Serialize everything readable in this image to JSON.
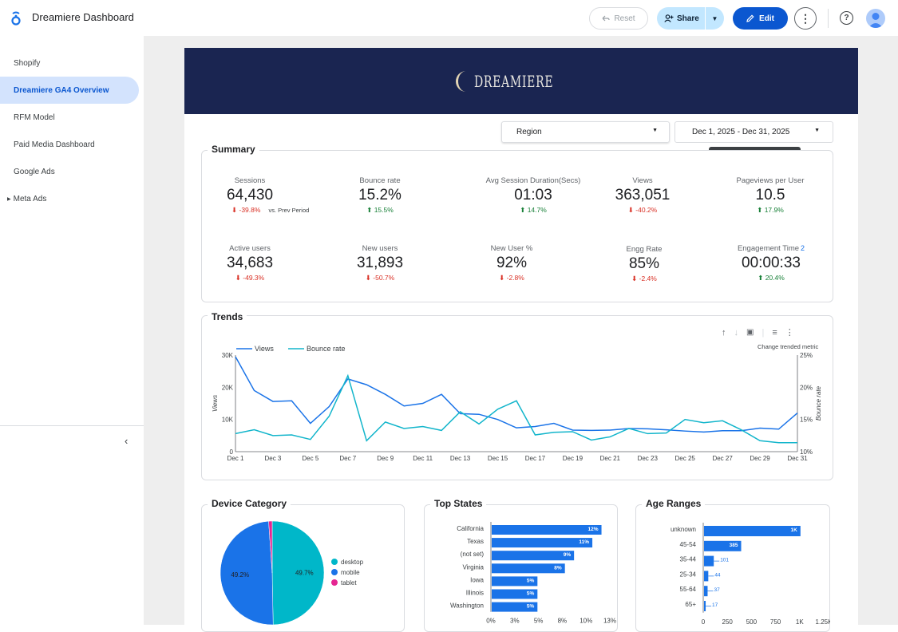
{
  "app": {
    "title": "Dreamiere Dashboard"
  },
  "toolbar": {
    "reset_label": "Reset",
    "share_label": "Share",
    "edit_label": "Edit"
  },
  "sidebar": {
    "items": [
      {
        "label": "Shopify",
        "active": false
      },
      {
        "label": "Dreamiere GA4 Overview",
        "active": true
      },
      {
        "label": "RFM Model",
        "active": false
      },
      {
        "label": "Paid Media Dashboard",
        "active": false
      },
      {
        "label": "Google Ads",
        "active": false
      },
      {
        "label": "Meta Ads",
        "active": false,
        "expandable": true
      }
    ],
    "collapse_glyph": "‹"
  },
  "banner": {
    "brand": "DREAMIERE"
  },
  "filters": {
    "region_label": "Region",
    "date_range": "Dec 1, 2025 - Dec 31, 2025",
    "tooltip": "Dec 1, 2025 - Dec 31, 2025"
  },
  "summary": {
    "title": "Summary",
    "vs_prev": "vs. Prev Period",
    "kpis": [
      {
        "label": "Sessions",
        "value": "64,430",
        "change": "-39.8%",
        "dir": "down"
      },
      {
        "label": "Bounce rate",
        "value": "15.2%",
        "change": "15.5%",
        "dir": "up"
      },
      {
        "label": "Avg Session Duration(Secs)",
        "value": "01:03",
        "change": "14.7%",
        "dir": "up"
      },
      {
        "label": "Views",
        "value": "363,051",
        "change": "-40.2%",
        "dir": "down"
      },
      {
        "label": "Pageviews per User",
        "value": "10.5",
        "change": "17.9%",
        "dir": "up"
      },
      {
        "label": "Active users",
        "value": "34,683",
        "change": "-49.3%",
        "dir": "down"
      },
      {
        "label": "New users",
        "value": "31,893",
        "change": "-50.7%",
        "dir": "down"
      },
      {
        "label": "New User %",
        "value": "92%",
        "change": "-2.8%",
        "dir": "down"
      },
      {
        "label": "Engg Rate",
        "value": "85%",
        "change": "-2.4%",
        "dir": "down"
      },
      {
        "label": "Engagement Time",
        "value": "00:00:33",
        "change": "20.4%",
        "dir": "up",
        "superscript": "2"
      }
    ]
  },
  "trends": {
    "title": "Trends",
    "change_metric_label": "Change trended metric"
  },
  "device": {
    "title": "Device Category"
  },
  "states": {
    "title": "Top States"
  },
  "ages": {
    "title": "Age Ranges"
  },
  "colors": {
    "views": "#1a73e8",
    "bounce": "#12b5cb",
    "desktop": "#00b7c9",
    "mobile": "#1a73e8",
    "tablet": "#e52592",
    "bar": "#1a73e8",
    "accent": "#0b57d0"
  },
  "chart_data": [
    {
      "type": "line",
      "title": "Trends",
      "xlabel": "",
      "ylabel": "Views",
      "y2label": "Bounce rate",
      "x": [
        "Dec 1",
        "Dec 2",
        "Dec 3",
        "Dec 4",
        "Dec 5",
        "Dec 6",
        "Dec 7",
        "Dec 8",
        "Dec 9",
        "Dec 10",
        "Dec 11",
        "Dec 12",
        "Dec 13",
        "Dec 14",
        "Dec 15",
        "Dec 16",
        "Dec 17",
        "Dec 18",
        "Dec 19",
        "Dec 20",
        "Dec 21",
        "Dec 22",
        "Dec 23",
        "Dec 24",
        "Dec 25",
        "Dec 26",
        "Dec 27",
        "Dec 28",
        "Dec 29",
        "Dec 30",
        "Dec 31"
      ],
      "x_tick_labels": [
        "Dec 1",
        "Dec 3",
        "Dec 5",
        "Dec 7",
        "Dec 9",
        "Dec 11",
        "Dec 13",
        "Dec 15",
        "Dec 17",
        "Dec 19",
        "Dec 21",
        "Dec 23",
        "Dec 25",
        "Dec 27",
        "Dec 29",
        "Dec 31"
      ],
      "ylim": [
        0,
        30000
      ],
      "y_ticks": [
        "0",
        "10K",
        "20K",
        "30K"
      ],
      "y2lim": [
        10,
        25
      ],
      "y2_ticks": [
        "10%",
        "15%",
        "20%",
        "25%"
      ],
      "series": [
        {
          "name": "Views",
          "axis": "left",
          "values": [
            29500,
            19000,
            15600,
            15800,
            8800,
            14000,
            22600,
            20800,
            17800,
            14200,
            15000,
            17800,
            11800,
            11600,
            10000,
            7400,
            7800,
            8800,
            6700,
            6600,
            6700,
            7200,
            7100,
            6800,
            6400,
            6100,
            6500,
            6500,
            7300,
            7000,
            12000
          ]
        },
        {
          "name": "Bounce rate",
          "axis": "right",
          "values": [
            12.8,
            13.4,
            12.5,
            12.6,
            11.9,
            15.5,
            21.8,
            11.7,
            14.6,
            13.6,
            13.9,
            13.3,
            16.2,
            14.3,
            16.6,
            17.9,
            12.6,
            13.0,
            13.1,
            11.8,
            12.3,
            13.6,
            12.8,
            12.9,
            15.0,
            14.5,
            14.8,
            13.4,
            11.7,
            11.4,
            11.4
          ]
        }
      ],
      "legend": "top-left"
    },
    {
      "type": "pie",
      "title": "Device Category",
      "labels": [
        "desktop",
        "mobile",
        "tablet"
      ],
      "values": [
        49.7,
        49.2,
        1.1
      ],
      "data_labels": [
        "49.7%",
        "49.2%",
        ""
      ],
      "legend": "right"
    },
    {
      "type": "bar",
      "orientation": "horizontal",
      "title": "Top States",
      "categories": [
        "California",
        "Texas",
        "(not set)",
        "Virginia",
        "Iowa",
        "Illinois",
        "Washington"
      ],
      "values": [
        12,
        11,
        9,
        8,
        5,
        5,
        5
      ],
      "data_labels": [
        "12%",
        "11%",
        "9%",
        "8%",
        "5%",
        "5%",
        "5%"
      ],
      "xlim": [
        0,
        13
      ],
      "x_ticks": [
        "0%",
        "3%",
        "5%",
        "8%",
        "10%",
        "13%"
      ]
    },
    {
      "type": "bar",
      "orientation": "horizontal",
      "title": "Age Ranges",
      "categories": [
        "unknown",
        "45-54",
        "35-44",
        "25-34",
        "55-64",
        "65+"
      ],
      "values": [
        1000,
        385,
        101,
        44,
        37,
        17
      ],
      "data_labels": [
        "1K",
        "385",
        "101",
        "44",
        "37",
        "17"
      ],
      "xlim": [
        0,
        1250
      ],
      "x_ticks": [
        "0",
        "250",
        "500",
        "750",
        "1K",
        "1.25K"
      ]
    }
  ]
}
